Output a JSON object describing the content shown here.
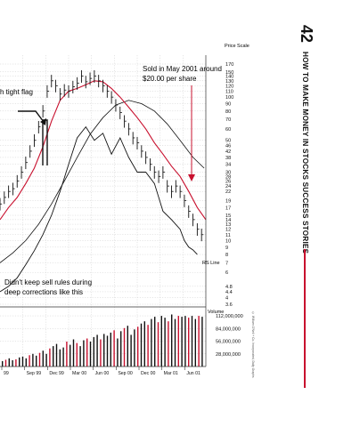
{
  "page": {
    "number": "42",
    "running_head": "HOW TO MAKE MONEY IN STOCKS SUCCESS STORIES",
    "copyright": "© William O'Neil + Co. Incorporated, Daily Graphs"
  },
  "colors": {
    "price_bars": "#111111",
    "moving_average_50": "#c8102e",
    "moving_average_200": "#111111",
    "rs_line": "#111111",
    "volume_up": "#111111",
    "volume_down": "#c8102e",
    "grid": "#b9b9b9",
    "accent_rule": "#c8102e"
  },
  "chart_data": {
    "type": "line",
    "title": "",
    "scale": "log",
    "price_axis": {
      "label": "Price Scale",
      "ticks": [
        170,
        150,
        140,
        130,
        120,
        110,
        100,
        90,
        80,
        70,
        60,
        50,
        46,
        42,
        38,
        34,
        30,
        28,
        26,
        24,
        22,
        19,
        17,
        15,
        14,
        13,
        12,
        11,
        10,
        9,
        8,
        7,
        6,
        4.8,
        4.4,
        4.0,
        3.6
      ]
    },
    "volume_axis": {
      "label": "Volume",
      "ticks": [
        "112,000,000",
        "84,000,000",
        "56,000,000",
        "28,000,000"
      ]
    },
    "x_ticks": [
      "99",
      "Sep 99",
      "Dec 99",
      "Mar 00",
      "Jun 00",
      "Sep 00",
      "Dec 00",
      "Mar 01",
      "Jun 01"
    ],
    "annotations": {
      "sold": "Sold in May 2001 around $20.00 per share",
      "flag": "h tight flag",
      "rules": "Didn't keep sell rules during deep corrections like this",
      "rs_line": "RS Line"
    },
    "series": [
      {
        "key": "price",
        "x": [
          0,
          5,
          10,
          15,
          20,
          25,
          30,
          35,
          40,
          45,
          50,
          55,
          60,
          65,
          70,
          75,
          80,
          85,
          90,
          95,
          100,
          105,
          110,
          115,
          120,
          125,
          130,
          135,
          140,
          145,
          150,
          155,
          160,
          165,
          170,
          175,
          180,
          185,
          190,
          195,
          200,
          205,
          210,
          215,
          220,
          225,
          230,
          235
        ],
        "y": [
          18,
          20,
          22,
          23,
          26,
          30,
          35,
          42,
          50,
          62,
          80,
          110,
          130,
          120,
          105,
          112,
          110,
          118,
          125,
          140,
          128,
          135,
          140,
          130,
          120,
          110,
          100,
          88,
          78,
          68,
          60,
          52,
          48,
          42,
          38,
          34,
          30,
          28,
          30,
          24,
          22,
          24,
          22,
          19,
          16,
          14,
          12,
          11
        ]
      },
      {
        "key": "ma50",
        "x": [
          0,
          10,
          20,
          30,
          40,
          50,
          60,
          70,
          80,
          90,
          100,
          110,
          120,
          130,
          140,
          150,
          160,
          170,
          180,
          190,
          200,
          210,
          220,
          230,
          240
        ],
        "y": [
          14,
          17,
          20,
          25,
          32,
          45,
          68,
          95,
          110,
          115,
          122,
          130,
          128,
          115,
          100,
          85,
          72,
          60,
          48,
          40,
          33,
          28,
          22,
          17,
          14
        ]
      },
      {
        "key": "ma200",
        "x": [
          0,
          15,
          30,
          45,
          60,
          75,
          90,
          105,
          120,
          135,
          150,
          165,
          180,
          195,
          210,
          225,
          238
        ],
        "y": [
          7,
          8.2,
          10,
          13,
          18,
          26,
          38,
          55,
          72,
          88,
          95,
          90,
          80,
          65,
          50,
          38,
          32
        ]
      },
      {
        "key": "rs",
        "x": [
          0,
          10,
          20,
          30,
          40,
          50,
          60,
          70,
          80,
          90,
          100,
          110,
          120,
          130,
          140,
          150,
          160,
          170,
          180,
          190,
          200,
          210,
          215,
          220,
          225,
          230
        ],
        "y": [
          4.4,
          4.8,
          5.5,
          6.8,
          8.5,
          11,
          15,
          22,
          34,
          52,
          62,
          50,
          56,
          40,
          52,
          38,
          30,
          30,
          25,
          16,
          14,
          12,
          10,
          9,
          8.6,
          8
        ]
      }
    ],
    "volume": {
      "values": [
        12,
        15,
        18,
        14,
        16,
        20,
        22,
        18,
        25,
        28,
        24,
        30,
        35,
        28,
        40,
        45,
        50,
        38,
        42,
        55,
        48,
        60,
        52,
        45,
        58,
        62,
        55,
        65,
        70,
        60,
        72,
        68,
        75,
        80,
        62,
        78,
        85,
        90,
        70,
        82,
        88,
        95,
        100,
        92,
        105,
        110,
        98,
        112,
        108,
        100,
        115,
        105,
        112,
        110,
        112,
        108,
        112,
        105,
        112,
        110
      ],
      "down": [
        1,
        4,
        8,
        11,
        14,
        19,
        22,
        25,
        29,
        33,
        36,
        40,
        43,
        46,
        49,
        52,
        55,
        58
      ]
    }
  }
}
